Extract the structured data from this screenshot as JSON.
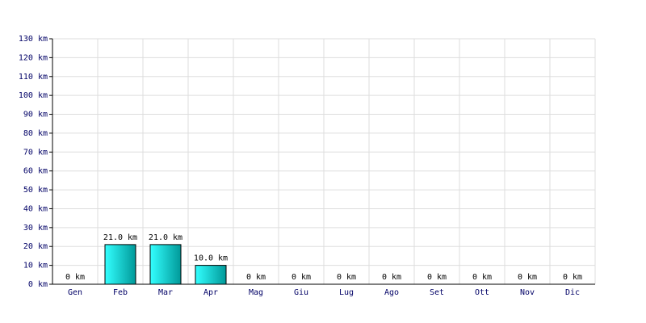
{
  "chart_data": {
    "type": "bar",
    "categories": [
      "Gen",
      "Feb",
      "Mar",
      "Apr",
      "Mag",
      "Giu",
      "Lug",
      "Ago",
      "Set",
      "Ott",
      "Nov",
      "Dic"
    ],
    "values": [
      0,
      21,
      21,
      10,
      0,
      0,
      0,
      0,
      0,
      0,
      0,
      0
    ],
    "value_labels": [
      "0 km",
      "21.0 km",
      "21.0 km",
      "10.0 km",
      "0 km",
      "0 km",
      "0 km",
      "0 km",
      "0 km",
      "0 km",
      "0 km",
      "0 km"
    ],
    "color": "#00cccc",
    "ylim": [
      0,
      130
    ],
    "yticks": [
      {
        "value": 0,
        "label": "0 km"
      },
      {
        "value": 10,
        "label": "10 km"
      },
      {
        "value": 20,
        "label": "20 km"
      },
      {
        "value": 30,
        "label": "30 km"
      },
      {
        "value": 40,
        "label": "40 km"
      },
      {
        "value": 50,
        "label": "50 km"
      },
      {
        "value": 60,
        "label": "60 km"
      },
      {
        "value": 70,
        "label": "70 km"
      },
      {
        "value": 80,
        "label": "80 km"
      },
      {
        "value": 90,
        "label": "90 km"
      },
      {
        "value": 100,
        "label": "100 km"
      },
      {
        "value": 110,
        "label": "110 km"
      },
      {
        "value": 120,
        "label": "120 km"
      },
      {
        "value": 130,
        "label": "130 km"
      }
    ],
    "grid": true
  }
}
